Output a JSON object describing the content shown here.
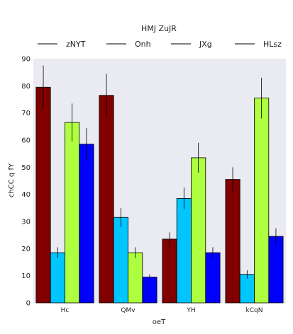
{
  "chart_data": {
    "type": "bar",
    "title": "HMJ ZuJR",
    "xlabel": "oeT",
    "ylabel": "chCC q fY",
    "ylim": [
      0,
      90
    ],
    "yticks": [
      0,
      10,
      20,
      30,
      40,
      50,
      60,
      70,
      80,
      90
    ],
    "grid": false,
    "legend_position": "top",
    "categories": [
      "Hc",
      "QMv",
      "YH",
      "kCqN"
    ],
    "series": [
      {
        "name": "zNYT",
        "color": "#800000",
        "values": [
          79.5,
          76.5,
          23.5,
          45.5
        ],
        "errors": [
          8,
          8,
          2.5,
          4.5
        ]
      },
      {
        "name": "Onh",
        "color": "#00c5ff",
        "values": [
          18.5,
          31.5,
          38.5,
          10.5
        ],
        "errors": [
          2,
          3.5,
          4,
          1.5
        ]
      },
      {
        "name": "JXg",
        "color": "#adff3f",
        "values": [
          66.5,
          18.5,
          53.5,
          75.5
        ],
        "errors": [
          7,
          2,
          5.5,
          7.5
        ]
      },
      {
        "name": "HLsz",
        "color": "#0000ff",
        "values": [
          58.5,
          9.5,
          18.5,
          24.5
        ],
        "errors": [
          6,
          1,
          2,
          3
        ]
      }
    ],
    "background": "#eaeaf2"
  }
}
